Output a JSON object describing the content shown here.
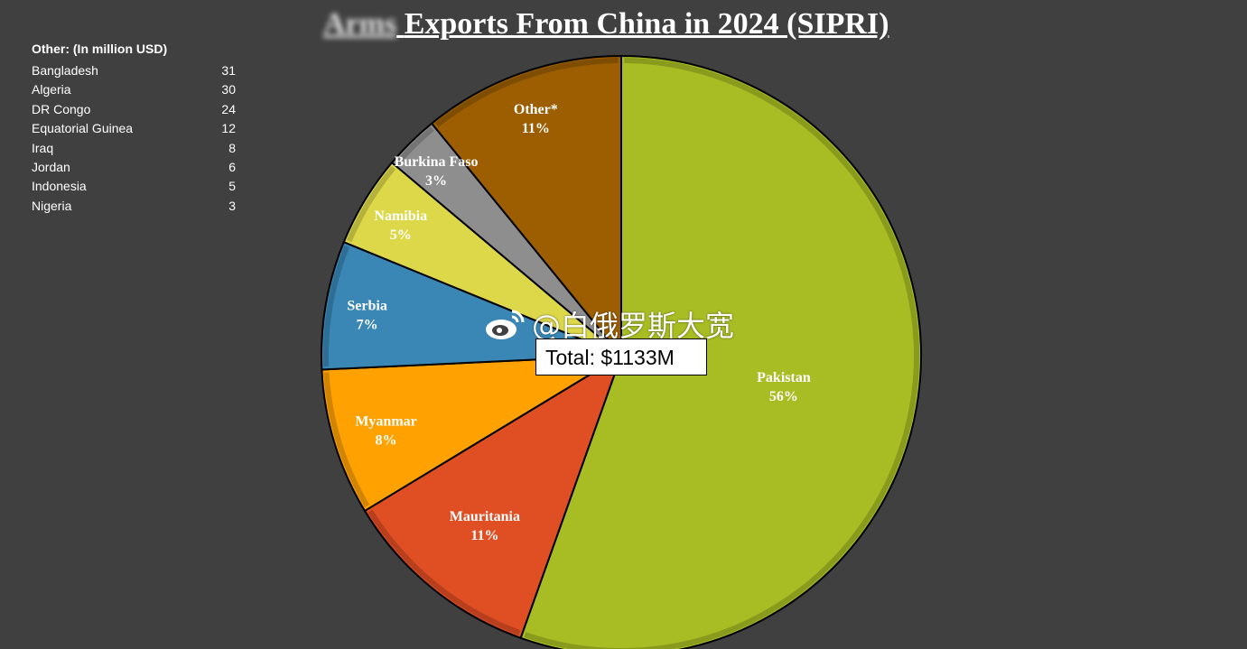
{
  "title": {
    "obscured_prefix": "Arms",
    "text": "Exports From China in 2024 (SIPRI)"
  },
  "other_table": {
    "header": "Other: (In million USD)",
    "rows": [
      {
        "country": "Bangladesh",
        "value": "31"
      },
      {
        "country": "Algeria",
        "value": "30"
      },
      {
        "country": "DR Congo",
        "value": "24"
      },
      {
        "country": "Equatorial Guinea",
        "value": "12"
      },
      {
        "country": "Iraq",
        "value": "8"
      },
      {
        "country": "Jordan",
        "value": "6"
      },
      {
        "country": "Indonesia",
        "value": "5"
      },
      {
        "country": "Nigeria",
        "value": "3"
      }
    ]
  },
  "total_label": "Total: $1133M",
  "watermark": "@白俄罗斯大宽",
  "chart_data": {
    "type": "pie",
    "title": "Exports From China in 2024 (SIPRI)",
    "total": "Total: $1133M",
    "slices": [
      {
        "label": "Pakistan",
        "percent_label": "56%",
        "value": 56,
        "color": "#a8bd24"
      },
      {
        "label": "Mauritania",
        "percent_label": "11%",
        "value": 11,
        "color": "#e04e24"
      },
      {
        "label": "Myanmar",
        "percent_label": "8%",
        "value": 8,
        "color": "#ffa100"
      },
      {
        "label": "Serbia",
        "percent_label": "7%",
        "value": 7,
        "color": "#3a87b5"
      },
      {
        "label": "Namibia",
        "percent_label": "5%",
        "value": 5,
        "color": "#dcd84a"
      },
      {
        "label": "Burkina Faso",
        "percent_label": "3%",
        "value": 3,
        "color": "#8e8e8e"
      },
      {
        "label": "Other*",
        "percent_label": "11%",
        "value": 11,
        "color": "#9c5e00"
      }
    ]
  }
}
